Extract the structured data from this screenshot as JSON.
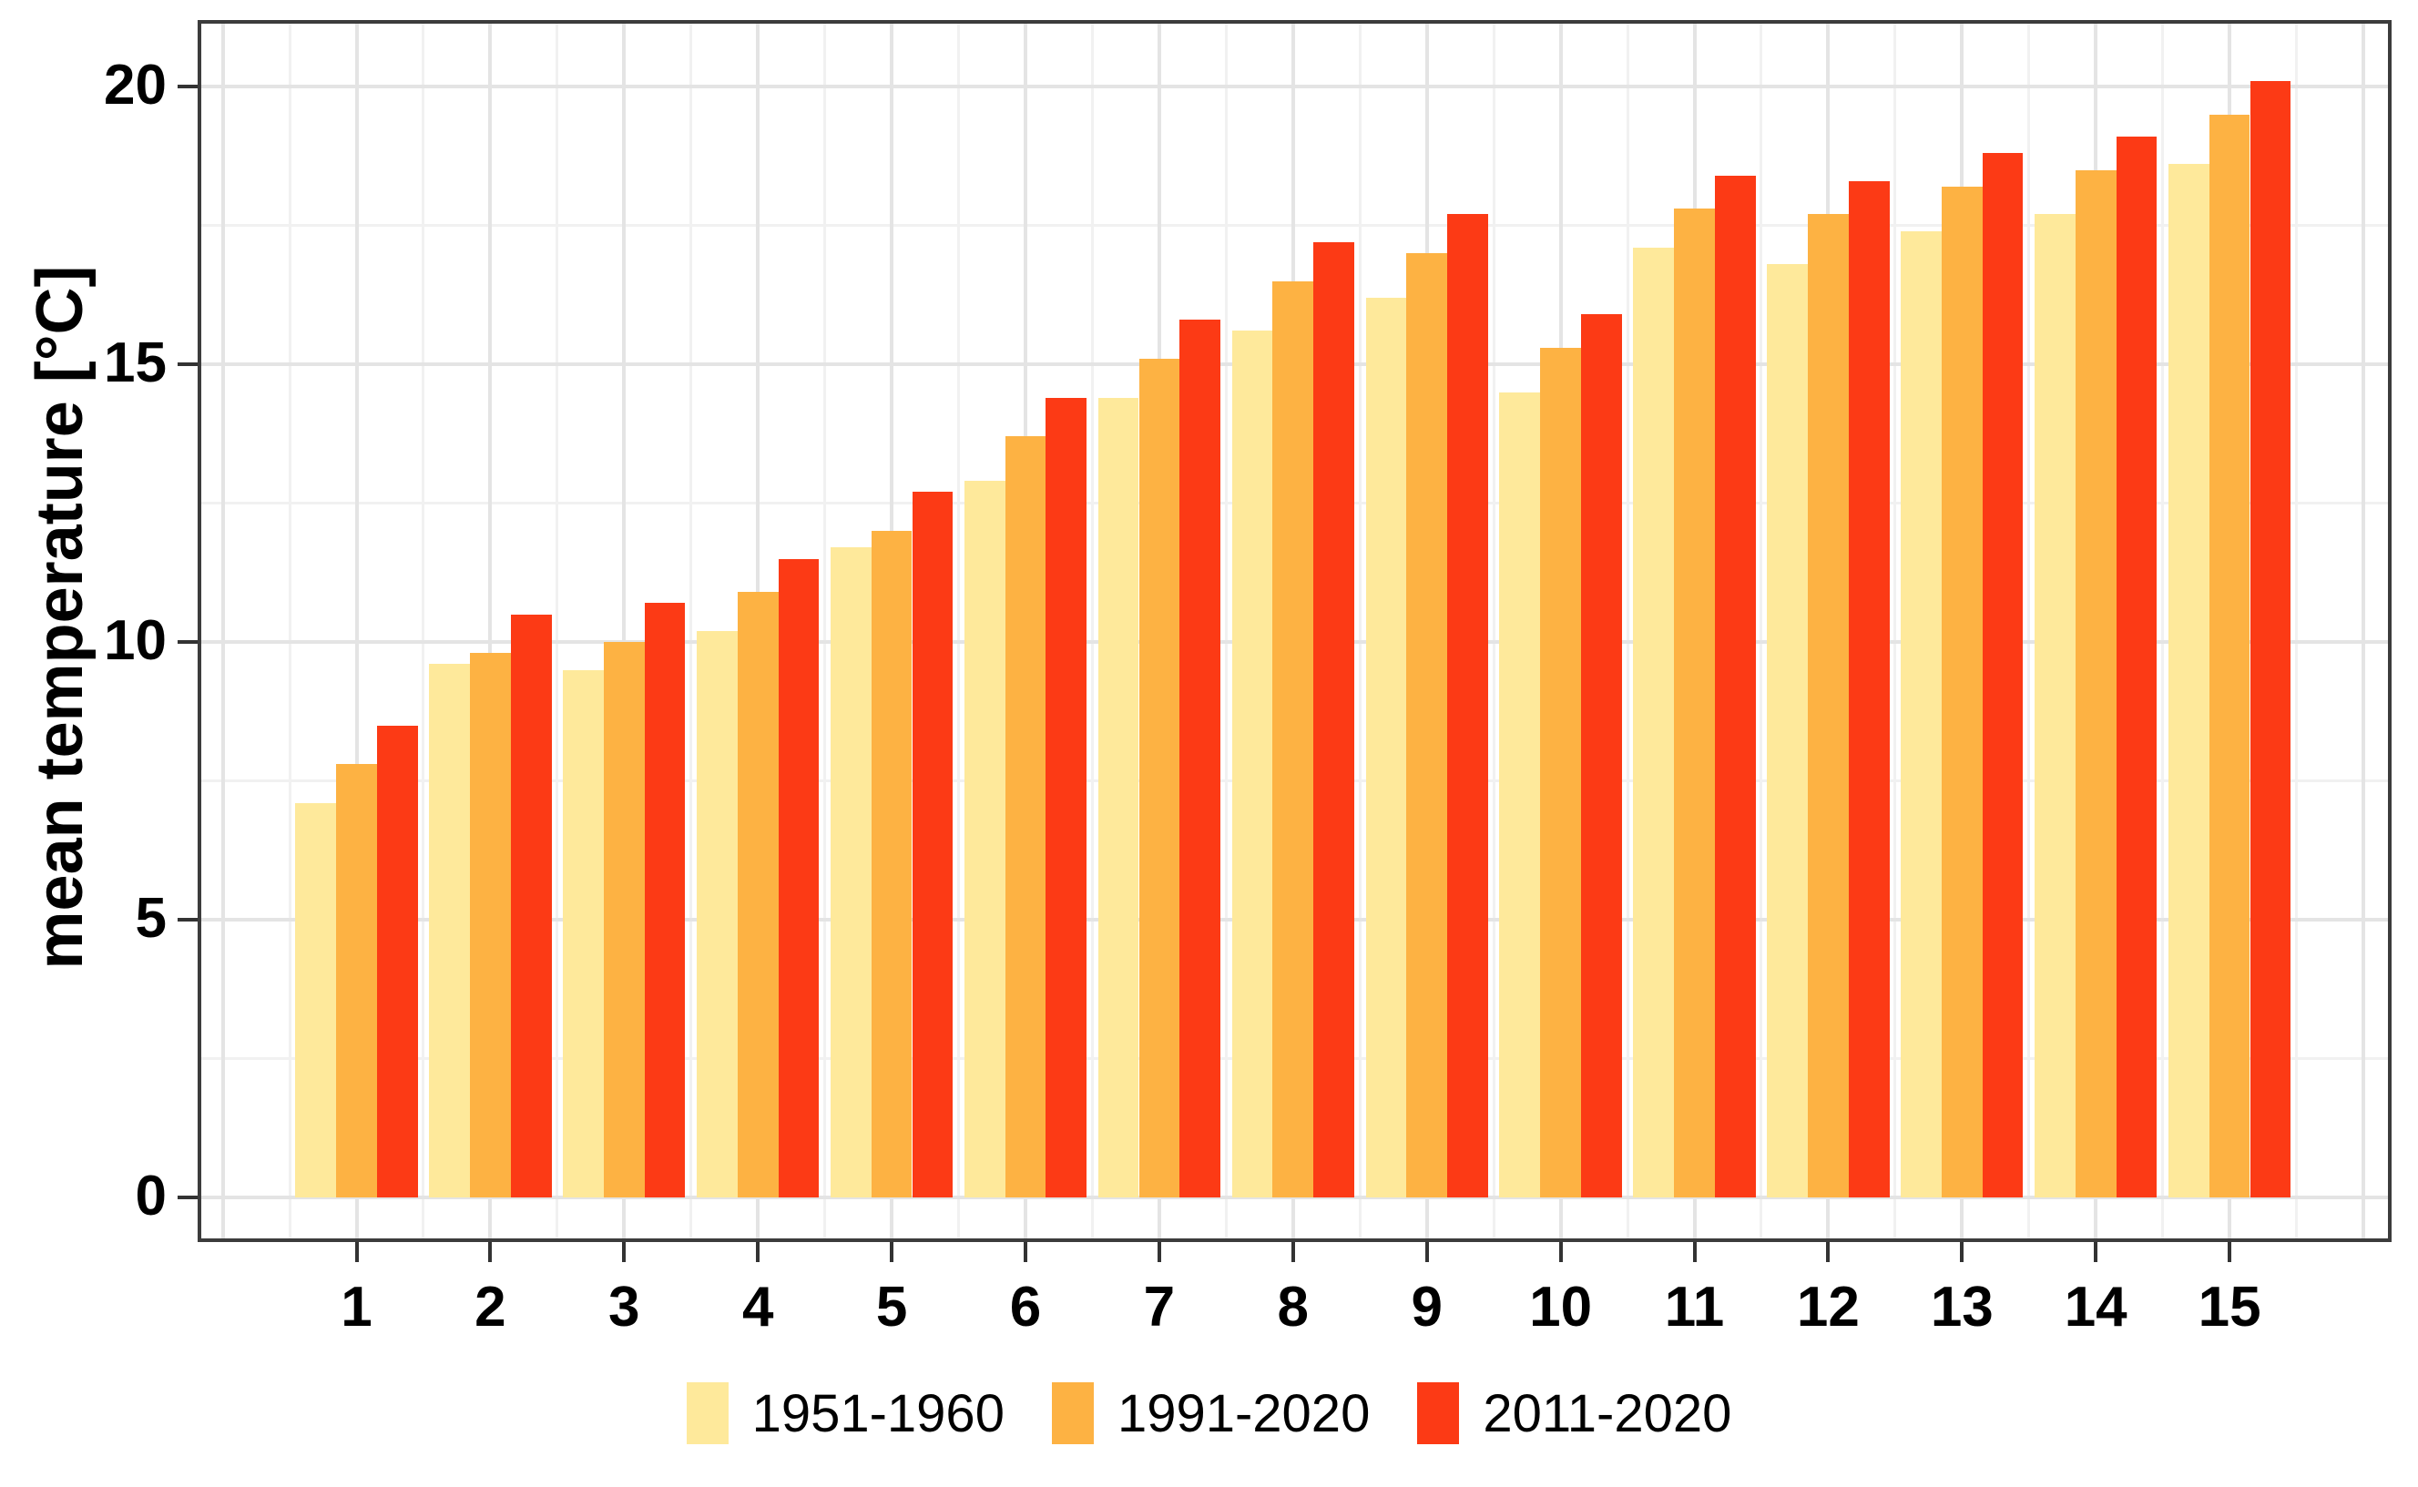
{
  "chart_data": {
    "type": "bar",
    "title": "",
    "ylabel": "mean temperature [°C]",
    "xlabel": "",
    "categories": [
      "1",
      "2",
      "3",
      "4",
      "5",
      "6",
      "7",
      "8",
      "9",
      "10",
      "11",
      "12",
      "13",
      "14",
      "15"
    ],
    "series": [
      {
        "name": "1951-1960",
        "color": "#FEE99B",
        "values": [
          7.1,
          9.6,
          9.5,
          10.2,
          11.7,
          12.9,
          14.4,
          15.6,
          16.2,
          14.5,
          17.1,
          16.8,
          17.4,
          17.7,
          18.6
        ]
      },
      {
        "name": "1991-2020",
        "color": "#FDB243",
        "values": [
          7.8,
          9.8,
          10.0,
          10.9,
          12.0,
          13.7,
          15.1,
          16.5,
          17.0,
          15.3,
          17.8,
          17.7,
          18.2,
          18.5,
          19.5
        ]
      },
      {
        "name": "2011-2020",
        "color": "#FC3A15",
        "values": [
          8.5,
          10.5,
          10.7,
          11.5,
          12.7,
          14.4,
          15.8,
          17.2,
          17.7,
          15.9,
          18.4,
          18.3,
          18.8,
          19.1,
          20.1
        ]
      }
    ],
    "y_ticks": [
      0,
      5,
      10,
      15,
      20
    ],
    "y_minor_gridlines": [
      2.5,
      7.5,
      12.5,
      17.5
    ],
    "ylim": [
      0,
      21
    ],
    "grid": true,
    "legend_position": "bottom",
    "colors": {
      "background": "#FFFFFF",
      "grid_major": "#E4E4E4",
      "grid_minor": "#F1F1F1",
      "panel_border": "#3C3C3C",
      "tick_mark": "#333333",
      "text": "#000000"
    }
  }
}
